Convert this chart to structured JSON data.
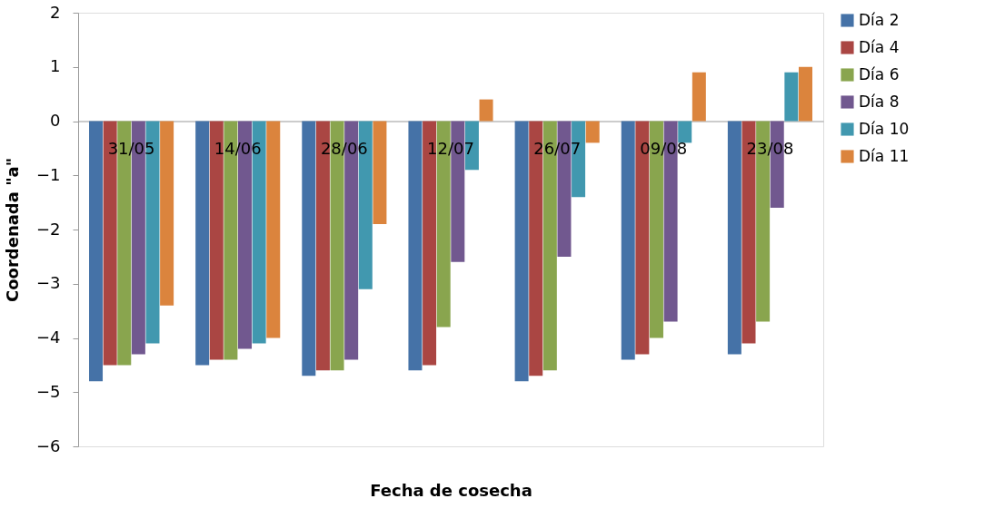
{
  "chart_data": {
    "type": "bar",
    "xlabel": "Fecha de cosecha",
    "ylabel": "Coordenada \"a\"",
    "categories": [
      "31/05",
      "14/06",
      "28/06",
      "12/07",
      "26/07",
      "09/08",
      "23/08"
    ],
    "series": [
      {
        "name": "Día 2",
        "color": "#4572a7",
        "values": [
          -4.8,
          -4.5,
          -4.7,
          -4.6,
          -4.8,
          -4.4,
          -4.3
        ]
      },
      {
        "name": "Día 4",
        "color": "#aa4643",
        "values": [
          -4.5,
          -4.4,
          -4.6,
          -4.5,
          -4.7,
          -4.3,
          -4.1
        ]
      },
      {
        "name": "Día 6",
        "color": "#89a54e",
        "values": [
          -4.5,
          -4.4,
          -4.6,
          -3.8,
          -4.6,
          -4.0,
          -3.7
        ]
      },
      {
        "name": "Día 8",
        "color": "#71588f",
        "values": [
          -4.3,
          -4.2,
          -4.4,
          -2.6,
          -2.5,
          -3.7,
          -1.6
        ]
      },
      {
        "name": "Día 10",
        "color": "#4198af",
        "values": [
          -4.1,
          -4.1,
          -3.1,
          -0.9,
          -1.4,
          -0.4,
          0.9
        ]
      },
      {
        "name": "Día 11",
        "color": "#db843d",
        "values": [
          -3.4,
          -4.0,
          -1.9,
          0.4,
          -0.4,
          0.9,
          1.0
        ]
      }
    ],
    "ylim": [
      -6,
      2
    ],
    "yticks": [
      -6,
      -5,
      -4,
      -3,
      -2,
      -1,
      0,
      1,
      2
    ],
    "grid": false,
    "legend": "right"
  }
}
